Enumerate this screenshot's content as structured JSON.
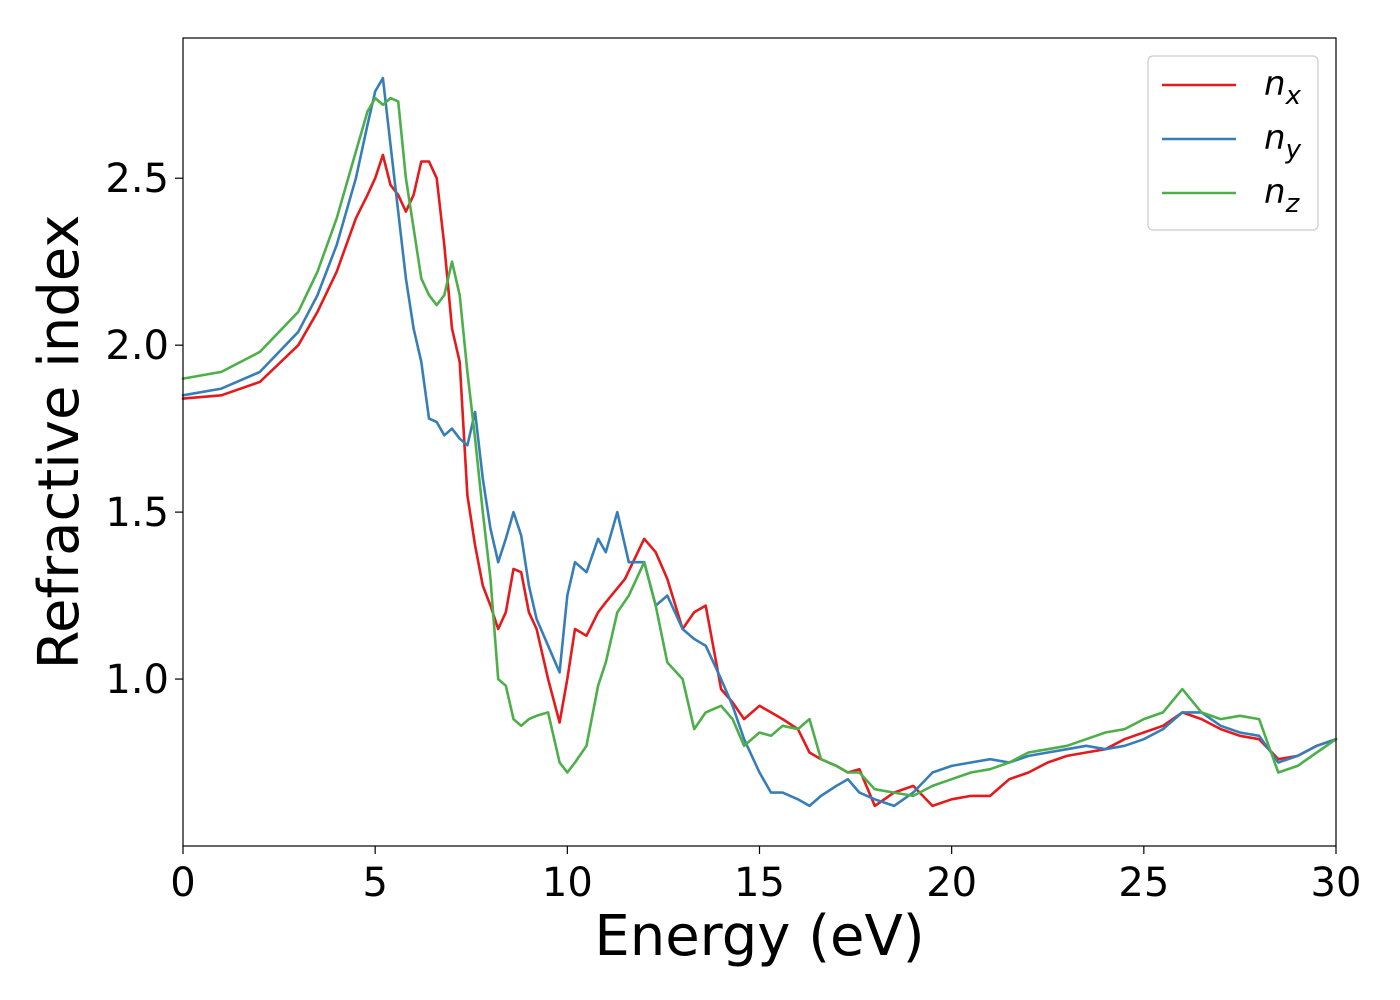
{
  "chart_data": {
    "type": "line",
    "xlabel": "Energy (eV)",
    "ylabel": "Refractive index",
    "xlim": [
      0,
      30
    ],
    "ylim": [
      0.5,
      2.92
    ],
    "xticks": [
      0,
      5,
      10,
      15,
      20,
      25,
      30
    ],
    "xtick_labels": [
      "0",
      "5",
      "10",
      "15",
      "20",
      "25",
      "30"
    ],
    "yticks": [
      1.0,
      1.5,
      2.0,
      2.5
    ],
    "ytick_labels": [
      "1.0",
      "1.5",
      "2.0",
      "2.5"
    ],
    "grid": false,
    "legend_position": "top-right",
    "series": [
      {
        "name": "n_x",
        "label_main": "n",
        "label_sub": "x",
        "color": "#e41a1c",
        "x": [
          0,
          1,
          2,
          3,
          3.5,
          4,
          4.5,
          4.8,
          5.0,
          5.2,
          5.4,
          5.6,
          5.8,
          6.0,
          6.2,
          6.4,
          6.6,
          6.8,
          7.0,
          7.2,
          7.4,
          7.6,
          7.8,
          8.0,
          8.2,
          8.4,
          8.6,
          8.8,
          9.0,
          9.2,
          9.5,
          9.8,
          10.0,
          10.2,
          10.5,
          10.8,
          11.0,
          11.5,
          12.0,
          12.3,
          12.6,
          13.0,
          13.3,
          13.6,
          14.0,
          14.3,
          14.6,
          15.0,
          15.3,
          15.6,
          16.0,
          16.3,
          16.6,
          17.0,
          17.3,
          17.6,
          18.0,
          18.5,
          19.0,
          19.5,
          20.0,
          20.5,
          21.0,
          21.5,
          22.0,
          22.5,
          23.0,
          23.5,
          24.0,
          24.5,
          25.0,
          25.5,
          26.0,
          26.5,
          27.0,
          27.5,
          28.0,
          28.5,
          29.0,
          29.5,
          30.0
        ],
        "y": [
          1.84,
          1.85,
          1.89,
          2.0,
          2.1,
          2.22,
          2.38,
          2.45,
          2.5,
          2.57,
          2.48,
          2.45,
          2.4,
          2.45,
          2.55,
          2.55,
          2.5,
          2.3,
          2.05,
          1.95,
          1.55,
          1.4,
          1.28,
          1.22,
          1.15,
          1.2,
          1.33,
          1.32,
          1.2,
          1.15,
          1.0,
          0.87,
          1.0,
          1.15,
          1.13,
          1.2,
          1.23,
          1.3,
          1.42,
          1.38,
          1.3,
          1.15,
          1.2,
          1.22,
          0.97,
          0.93,
          0.88,
          0.92,
          0.9,
          0.88,
          0.85,
          0.78,
          0.76,
          0.74,
          0.72,
          0.73,
          0.62,
          0.66,
          0.68,
          0.62,
          0.64,
          0.65,
          0.65,
          0.7,
          0.72,
          0.75,
          0.77,
          0.78,
          0.79,
          0.82,
          0.84,
          0.86,
          0.9,
          0.88,
          0.85,
          0.83,
          0.82,
          0.76,
          0.77,
          0.8,
          0.82
        ]
      },
      {
        "name": "n_y",
        "label_main": "n",
        "label_sub": "y",
        "color": "#377eb8",
        "x": [
          0,
          1,
          2,
          3,
          3.5,
          4,
          4.5,
          4.8,
          5.0,
          5.2,
          5.4,
          5.6,
          5.8,
          6.0,
          6.2,
          6.4,
          6.6,
          6.8,
          7.0,
          7.2,
          7.4,
          7.6,
          7.8,
          8.0,
          8.2,
          8.4,
          8.6,
          8.8,
          9.0,
          9.2,
          9.5,
          9.8,
          10.0,
          10.2,
          10.5,
          10.8,
          11.0,
          11.3,
          11.6,
          12.0,
          12.3,
          12.6,
          13.0,
          13.3,
          13.6,
          14.0,
          14.3,
          14.6,
          15.0,
          15.3,
          15.6,
          16.0,
          16.3,
          16.6,
          17.0,
          17.3,
          17.6,
          18.0,
          18.5,
          19.0,
          19.5,
          20.0,
          20.5,
          21.0,
          21.5,
          22.0,
          22.5,
          23.0,
          23.5,
          24.0,
          24.5,
          25.0,
          25.5,
          26.0,
          26.5,
          27.0,
          27.5,
          28.0,
          28.5,
          29.0,
          29.5,
          30.0
        ],
        "y": [
          1.85,
          1.87,
          1.92,
          2.04,
          2.15,
          2.3,
          2.5,
          2.66,
          2.76,
          2.8,
          2.6,
          2.4,
          2.2,
          2.05,
          1.95,
          1.78,
          1.77,
          1.73,
          1.75,
          1.72,
          1.7,
          1.8,
          1.6,
          1.45,
          1.35,
          1.42,
          1.5,
          1.43,
          1.28,
          1.18,
          1.1,
          1.02,
          1.25,
          1.35,
          1.32,
          1.42,
          1.38,
          1.5,
          1.35,
          1.35,
          1.22,
          1.25,
          1.15,
          1.12,
          1.1,
          1.0,
          0.92,
          0.82,
          0.72,
          0.66,
          0.66,
          0.64,
          0.62,
          0.65,
          0.68,
          0.7,
          0.66,
          0.64,
          0.62,
          0.66,
          0.72,
          0.74,
          0.75,
          0.76,
          0.75,
          0.77,
          0.78,
          0.79,
          0.8,
          0.79,
          0.8,
          0.82,
          0.85,
          0.9,
          0.9,
          0.86,
          0.84,
          0.83,
          0.75,
          0.77,
          0.8,
          0.82
        ]
      },
      {
        "name": "n_z",
        "label_main": "n",
        "label_sub": "z",
        "color": "#4daf4a",
        "x": [
          0,
          1,
          2,
          3,
          3.5,
          4,
          4.5,
          4.8,
          5.0,
          5.2,
          5.4,
          5.6,
          5.8,
          6.0,
          6.2,
          6.4,
          6.6,
          6.8,
          7.0,
          7.2,
          7.4,
          7.6,
          7.8,
          8.0,
          8.2,
          8.4,
          8.6,
          8.8,
          9.0,
          9.2,
          9.5,
          9.8,
          10.0,
          10.2,
          10.5,
          10.8,
          11.0,
          11.3,
          11.6,
          12.0,
          12.3,
          12.6,
          13.0,
          13.3,
          13.6,
          14.0,
          14.3,
          14.6,
          15.0,
          15.3,
          15.6,
          16.0,
          16.3,
          16.6,
          17.0,
          17.3,
          17.6,
          18.0,
          18.5,
          19.0,
          19.5,
          20.0,
          20.5,
          21.0,
          21.5,
          22.0,
          22.5,
          23.0,
          23.5,
          24.0,
          24.5,
          25.0,
          25.5,
          26.0,
          26.5,
          27.0,
          27.5,
          28.0,
          28.5,
          29.0,
          29.5,
          30.0
        ],
        "y": [
          1.9,
          1.92,
          1.98,
          2.1,
          2.22,
          2.38,
          2.58,
          2.7,
          2.74,
          2.72,
          2.74,
          2.73,
          2.5,
          2.35,
          2.2,
          2.15,
          2.12,
          2.15,
          2.25,
          2.15,
          1.92,
          1.72,
          1.5,
          1.3,
          1.0,
          0.98,
          0.88,
          0.86,
          0.88,
          0.89,
          0.9,
          0.75,
          0.72,
          0.75,
          0.8,
          0.98,
          1.05,
          1.2,
          1.25,
          1.35,
          1.22,
          1.05,
          1.0,
          0.85,
          0.9,
          0.92,
          0.88,
          0.8,
          0.84,
          0.83,
          0.86,
          0.85,
          0.88,
          0.76,
          0.74,
          0.72,
          0.72,
          0.67,
          0.66,
          0.65,
          0.68,
          0.7,
          0.72,
          0.73,
          0.75,
          0.78,
          0.79,
          0.8,
          0.82,
          0.84,
          0.85,
          0.88,
          0.9,
          0.97,
          0.9,
          0.88,
          0.89,
          0.88,
          0.72,
          0.74,
          0.78,
          0.82
        ]
      }
    ]
  }
}
